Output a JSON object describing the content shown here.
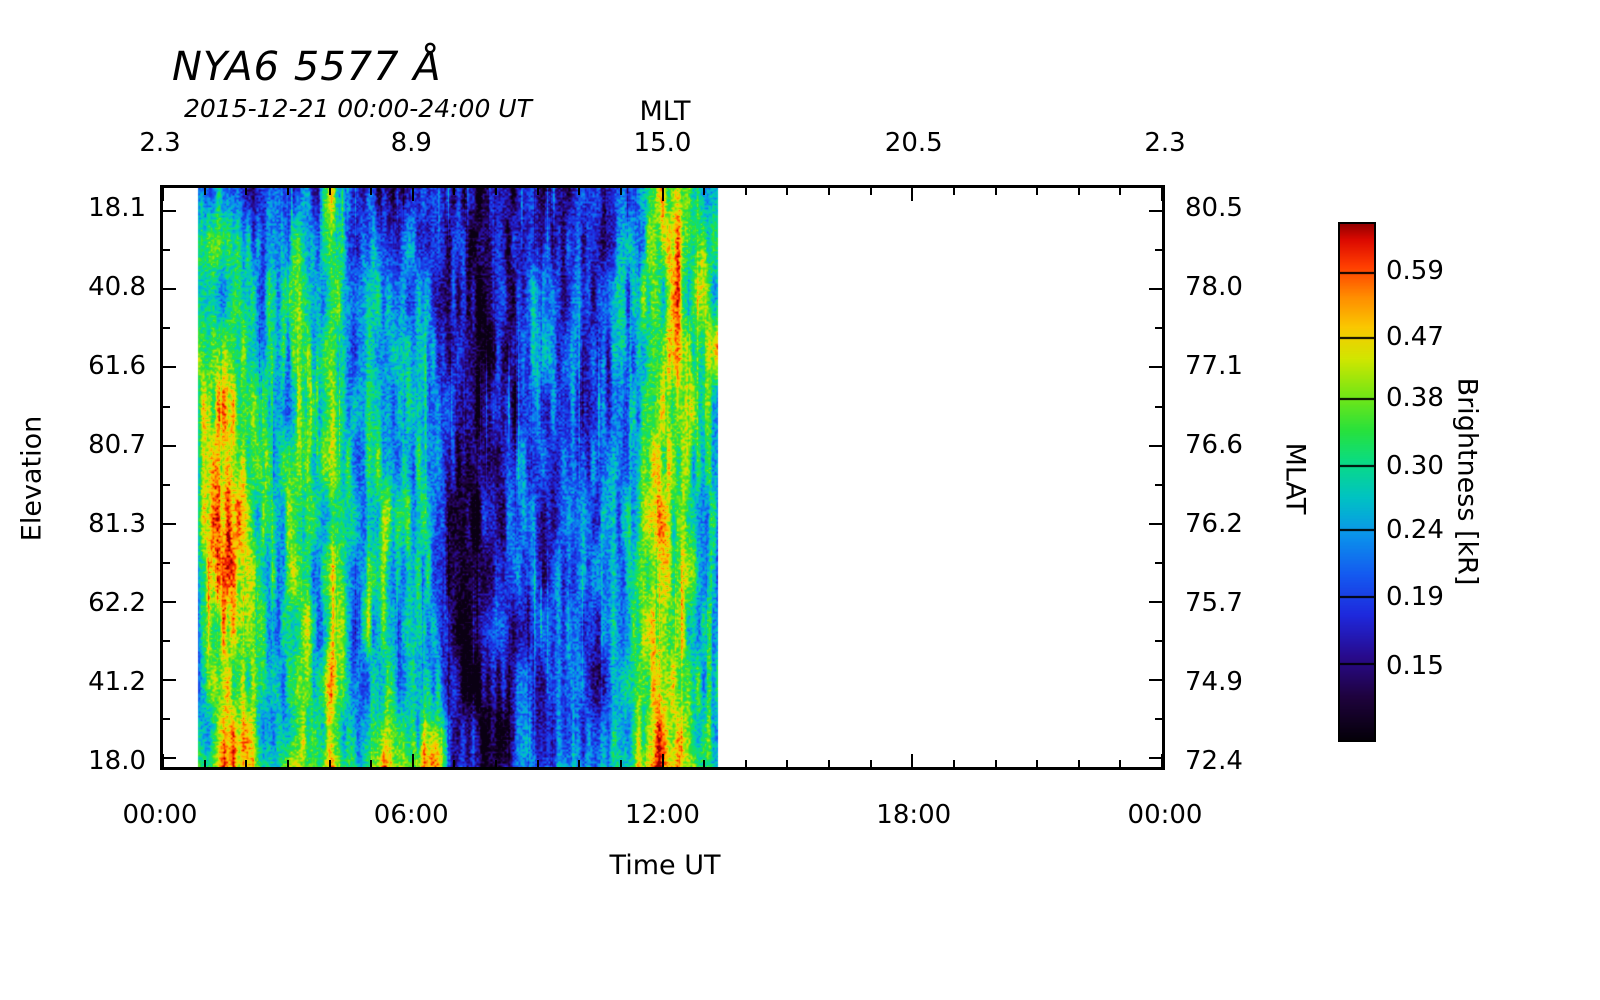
{
  "chart_data": {
    "type": "heatmap",
    "title": "NYA6 5577 Å",
    "subtitle": "2015-12-21 00:00-24:00 UT",
    "axes": {
      "top": {
        "label": "MLT",
        "ticks": [
          "2.3",
          "8.9",
          "15.0",
          "20.5",
          "2.3"
        ]
      },
      "bottom": {
        "label": "Time UT",
        "ticks": [
          "00:00",
          "06:00",
          "12:00",
          "18:00",
          "00:00"
        ]
      },
      "left": {
        "label": "Elevation",
        "ticks": [
          "18.1",
          "40.8",
          "61.6",
          "80.7",
          "81.3",
          "62.2",
          "41.2",
          "18.0"
        ]
      },
      "right": {
        "label": "MLAT",
        "ticks": [
          "80.5",
          "78.0",
          "77.1",
          "76.6",
          "76.2",
          "75.7",
          "74.9",
          "72.4"
        ]
      }
    },
    "x_range_ut_hours": [
      0,
      24
    ],
    "data_interval_ut_hours": [
      0.85,
      13.33
    ],
    "no_data_color": "#ffffff",
    "colorbar": {
      "label": "Brightness [kR]",
      "ticks": [
        0.59,
        0.47,
        0.38,
        0.3,
        0.24,
        0.19,
        0.15
      ],
      "vmin": 0.115,
      "vmax": 0.7,
      "scale": "log",
      "stops": [
        [
          0.0,
          "#05000a"
        ],
        [
          0.08,
          "#1e023c"
        ],
        [
          0.16,
          "#280a8c"
        ],
        [
          0.24,
          "#1e28dc"
        ],
        [
          0.32,
          "#145af0"
        ],
        [
          0.4,
          "#0a96eb"
        ],
        [
          0.47,
          "#00c3c3"
        ],
        [
          0.54,
          "#0adc82"
        ],
        [
          0.6,
          "#28e13c"
        ],
        [
          0.67,
          "#78e614"
        ],
        [
          0.74,
          "#d2e600"
        ],
        [
          0.8,
          "#fac800"
        ],
        [
          0.86,
          "#ff8c00"
        ],
        [
          0.92,
          "#ff3c00"
        ],
        [
          0.97,
          "#dc0a00"
        ],
        [
          1.0,
          "#960000"
        ]
      ]
    },
    "base_field": {
      "description": "Approximate brightness (0-100 colormap position). Rows = elevation scan top (18.1) to bottom (18.0); cols = time bins spanning the data interval 00:51-13:20 UT. ~88+ = saturated red auroral features, ~5-15 = dark sky.",
      "rows": 12,
      "cols": 40,
      "values": [
        [
          35,
          40,
          38,
          35,
          30,
          28,
          25,
          30,
          35,
          30,
          85,
          30,
          25,
          28,
          30,
          22,
          25,
          28,
          22,
          8,
          6,
          5,
          6,
          8,
          15,
          20,
          18,
          20,
          22,
          20,
          18,
          20,
          25,
          30,
          55,
          60,
          80,
          55,
          45,
          40
        ],
        [
          45,
          55,
          50,
          48,
          45,
          42,
          38,
          45,
          50,
          40,
          75,
          42,
          35,
          40,
          45,
          30,
          35,
          40,
          28,
          10,
          8,
          6,
          8,
          12,
          20,
          28,
          22,
          25,
          28,
          25,
          22,
          25,
          32,
          38,
          58,
          62,
          85,
          58,
          55,
          48
        ],
        [
          50,
          60,
          55,
          52,
          48,
          45,
          40,
          50,
          55,
          42,
          70,
          45,
          38,
          42,
          48,
          32,
          38,
          45,
          30,
          12,
          8,
          6,
          10,
          14,
          22,
          30,
          25,
          28,
          30,
          26,
          24,
          28,
          35,
          42,
          60,
          65,
          88,
          60,
          85,
          50
        ],
        [
          55,
          65,
          70,
          68,
          60,
          50,
          42,
          52,
          58,
          45,
          68,
          48,
          40,
          45,
          50,
          34,
          40,
          48,
          32,
          12,
          9,
          7,
          10,
          15,
          24,
          32,
          26,
          30,
          32,
          28,
          25,
          30,
          38,
          45,
          62,
          68,
          85,
          62,
          60,
          85
        ],
        [
          60,
          72,
          78,
          74,
          65,
          52,
          45,
          55,
          60,
          46,
          66,
          50,
          42,
          46,
          52,
          35,
          42,
          50,
          33,
          13,
          9,
          7,
          11,
          16,
          25,
          33,
          27,
          30,
          33,
          29,
          26,
          31,
          40,
          48,
          63,
          68,
          80,
          62,
          58,
          52
        ],
        [
          62,
          75,
          82,
          78,
          68,
          54,
          46,
          56,
          62,
          48,
          65,
          52,
          43,
          48,
          54,
          36,
          43,
          52,
          34,
          13,
          10,
          8,
          11,
          16,
          26,
          34,
          28,
          31,
          34,
          30,
          27,
          32,
          42,
          50,
          64,
          68,
          78,
          62,
          56,
          50
        ],
        [
          60,
          78,
          88,
          80,
          70,
          55,
          47,
          57,
          63,
          49,
          66,
          53,
          44,
          49,
          55,
          36,
          44,
          53,
          35,
          12,
          9,
          7,
          11,
          17,
          27,
          35,
          29,
          32,
          35,
          31,
          28,
          33,
          43,
          52,
          65,
          70,
          76,
          63,
          55,
          48
        ],
        [
          58,
          80,
          85,
          75,
          66,
          52,
          45,
          55,
          60,
          47,
          68,
          52,
          43,
          48,
          54,
          35,
          43,
          52,
          34,
          11,
          8,
          6,
          10,
          16,
          26,
          34,
          28,
          31,
          34,
          30,
          27,
          32,
          42,
          52,
          66,
          72,
          75,
          64,
          54,
          46
        ],
        [
          55,
          70,
          75,
          68,
          60,
          50,
          43,
          53,
          58,
          45,
          70,
          50,
          42,
          47,
          53,
          34,
          42,
          50,
          33,
          10,
          7,
          5,
          9,
          15,
          25,
          33,
          27,
          30,
          33,
          29,
          26,
          31,
          42,
          52,
          66,
          72,
          74,
          64,
          52,
          45
        ],
        [
          50,
          60,
          65,
          60,
          55,
          46,
          40,
          50,
          55,
          42,
          80,
          48,
          40,
          45,
          52,
          33,
          40,
          48,
          35,
          9,
          6,
          5,
          8,
          14,
          24,
          32,
          26,
          29,
          32,
          28,
          25,
          30,
          45,
          55,
          68,
          75,
          72,
          65,
          50,
          44
        ],
        [
          48,
          58,
          70,
          62,
          58,
          48,
          42,
          60,
          58,
          44,
          90,
          50,
          42,
          48,
          60,
          35,
          42,
          60,
          45,
          8,
          6,
          5,
          8,
          13,
          23,
          30,
          25,
          28,
          30,
          27,
          24,
          29,
          50,
          60,
          70,
          80,
          75,
          66,
          50,
          42
        ],
        [
          55,
          70,
          88,
          75,
          70,
          60,
          55,
          85,
          70,
          55,
          97,
          60,
          50,
          60,
          88,
          45,
          55,
          92,
          88,
          10,
          8,
          6,
          10,
          15,
          28,
          40,
          30,
          35,
          40,
          35,
          30,
          38,
          60,
          70,
          78,
          92,
          85,
          70,
          55,
          45
        ]
      ]
    }
  }
}
